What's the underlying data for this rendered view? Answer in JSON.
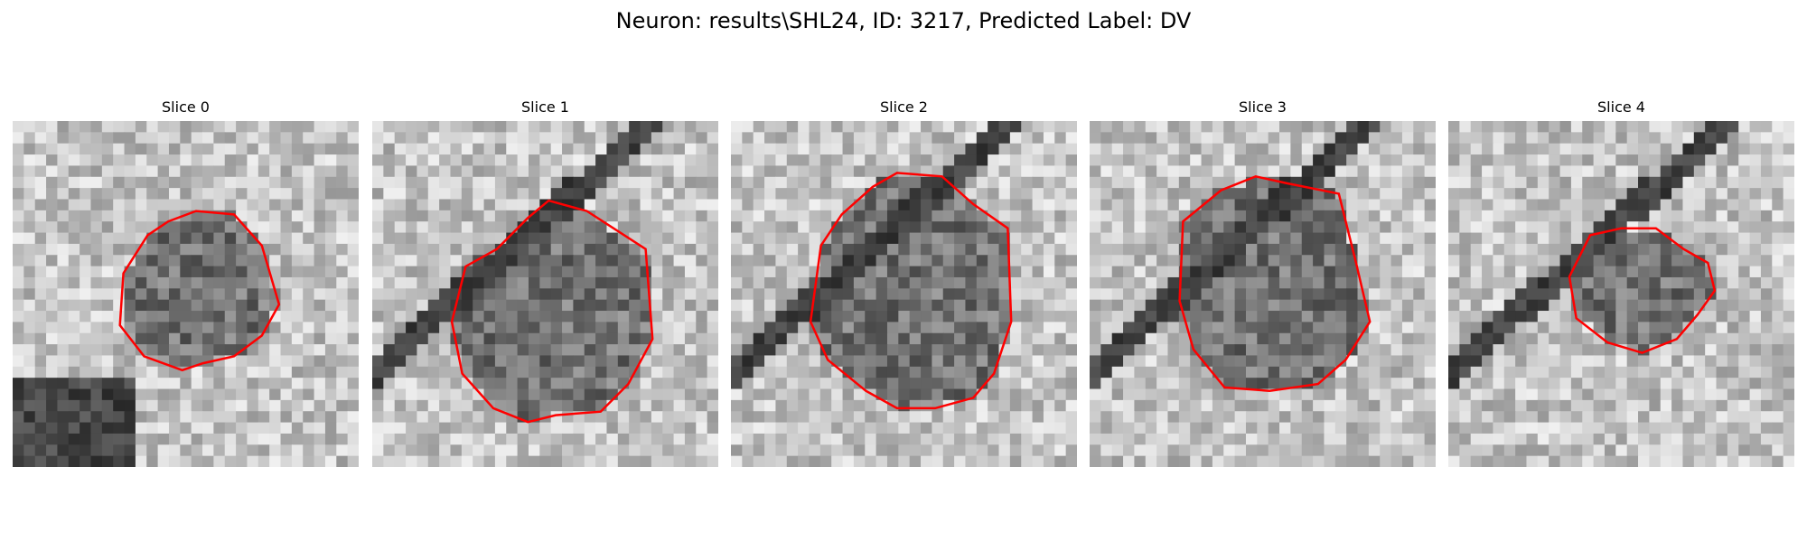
{
  "figure": {
    "title": "Neuron: results\\SHL24, ID: 3217, Predicted Label: DV"
  },
  "panels": [
    {
      "title": "Slice 0"
    },
    {
      "title": "Slice 1"
    },
    {
      "title": "Slice 2"
    },
    {
      "title": "Slice 3"
    },
    {
      "title": "Slice 4"
    }
  ],
  "colors": {
    "contour": "#ff0000",
    "background": "#ffffff"
  }
}
